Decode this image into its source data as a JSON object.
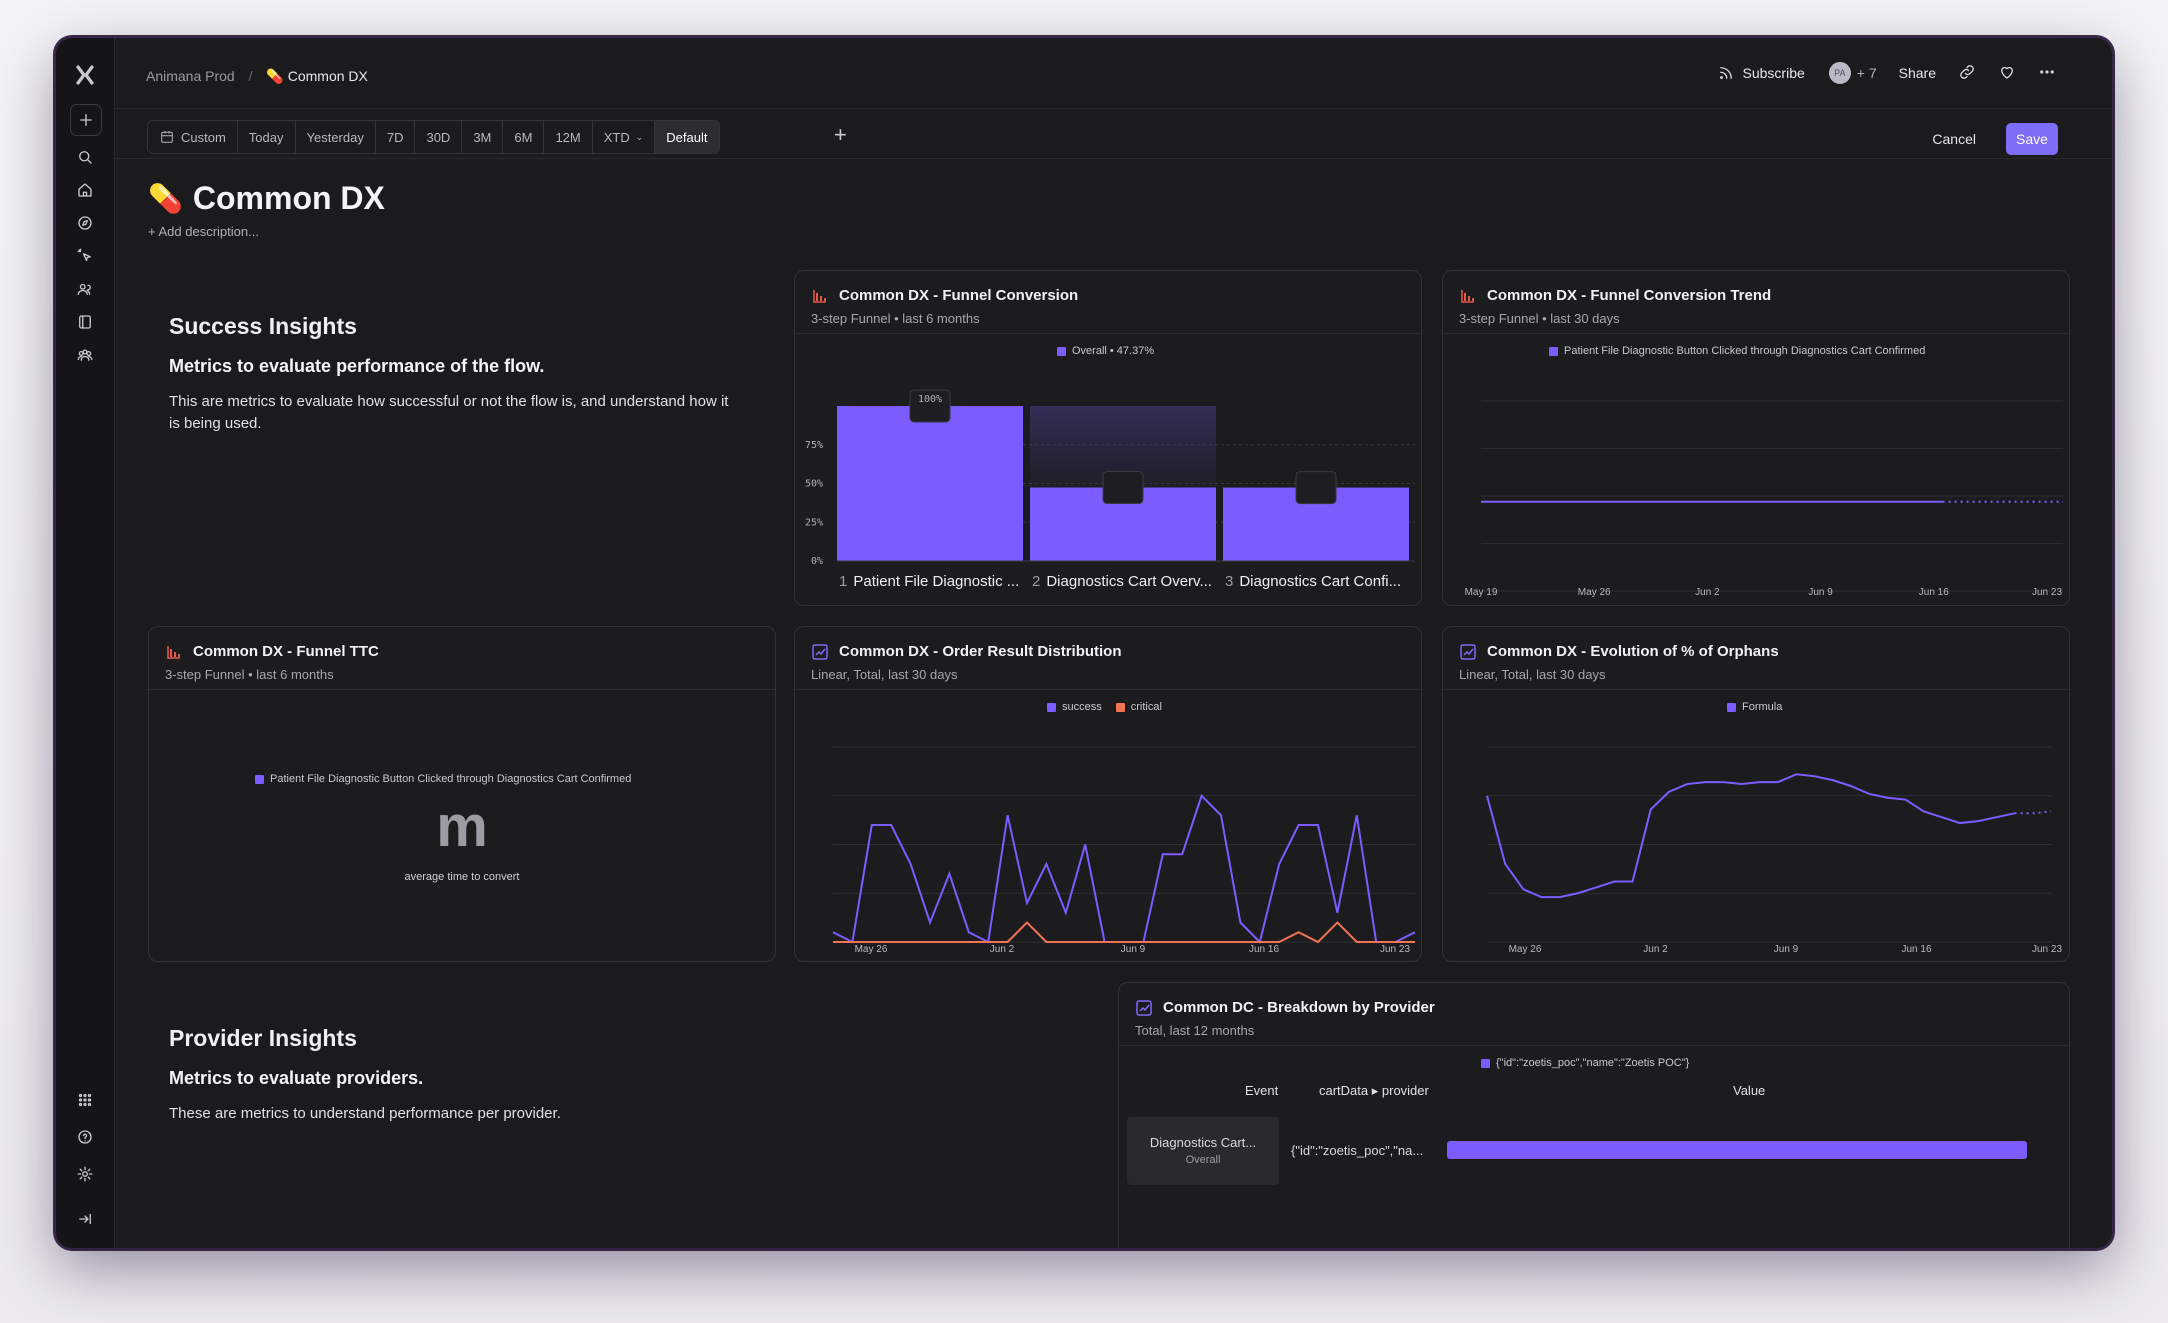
{
  "topbar": {
    "breadcrumb_parent": "Animana Prod",
    "breadcrumb_current": "Common DX",
    "subscribe_label": "Subscribe",
    "avatar_initials": "PA",
    "avatar_more": "+ 7",
    "share_label": "Share"
  },
  "filters": {
    "items": [
      "Custom",
      "Today",
      "Yesterday",
      "7D",
      "30D",
      "3M",
      "6M",
      "12M",
      "XTD",
      "Default"
    ],
    "active": "Default",
    "cancel_label": "Cancel",
    "save_label": "Save"
  },
  "page": {
    "title": "Common DX",
    "add_description": "+ Add description..."
  },
  "success_block": {
    "heading": "Success Insights",
    "subheading": "Metrics to evaluate performance of the flow.",
    "body": "This are metrics to evaluate how successful or not the flow is, and understand how it is being used."
  },
  "provider_block": {
    "heading": "Provider Insights",
    "subheading": "Metrics to evaluate providers.",
    "body": "These are metrics to understand performance per provider."
  },
  "colors": {
    "accent": "#7c5cff",
    "critical": "#f07454",
    "save_button": "#7c6cf6",
    "funnel_icon": "#e35a4a"
  },
  "cards": {
    "funnel_conversion": {
      "title": "Common DX - Funnel Conversion",
      "subtitle": "3-step Funnel • last 6 months",
      "legend": "Overall • 47.37%",
      "top_label": "100%",
      "steps": [
        {
          "num": "1",
          "label": "Patient File Diagnostic ..."
        },
        {
          "num": "2",
          "label": "Diagnostics Cart Overv..."
        },
        {
          "num": "3",
          "label": "Diagnostics Cart Confi..."
        }
      ]
    },
    "funnel_trend": {
      "title": "Common DX - Funnel Conversion Trend",
      "subtitle": "3-step Funnel • last 30 days",
      "legend": "Patient File Diagnostic Button Clicked through Diagnostics Cart Confirmed"
    },
    "funnel_ttc": {
      "title": "Common DX - Funnel TTC",
      "subtitle": "3-step Funnel • last 6 months",
      "legend": "Patient File Diagnostic Button Clicked through Diagnostics Cart Confirmed",
      "value": "m",
      "caption": "average time to convert"
    },
    "order_result": {
      "title": "Common DX - Order Result Distribution",
      "subtitle": "Linear, Total, last 30 days",
      "legend_a": "success",
      "legend_b": "critical"
    },
    "orphans": {
      "title": "Common DX - Evolution of % of Orphans",
      "subtitle": "Linear, Total, last 30 days",
      "legend": "Formula"
    },
    "breakdown": {
      "title": "Common DC - Breakdown by Provider",
      "subtitle": "Total, last 12 months",
      "legend": "{\"id\":\"zoetis_poc\",\"name\":\"Zoetis POC\"}",
      "col_event": "Event",
      "col_property": "cartData ▸ provider",
      "col_value": "Value",
      "row_event": "Diagnostics Cart...",
      "row_event_sub": "Overall",
      "row_provider": "{\"id\":\"zoetis_poc\",\"na...",
      "row_value": 1.0
    }
  },
  "chart_data": [
    {
      "id": "funnel_conversion",
      "type": "bar",
      "categories": [
        "Patient File Diagnostic ...",
        "Diagnostics Cart Overv...",
        "Diagnostics Cart Confi..."
      ],
      "values": [
        100,
        47.4,
        47.37
      ],
      "yticks": [
        "0%",
        "25%",
        "50%",
        "75%"
      ],
      "ylim": [
        0,
        100
      ]
    },
    {
      "id": "funnel_trend",
      "type": "line",
      "x_ticks": [
        "May 19",
        "May 26",
        "Jun 2",
        "Jun 9",
        "Jun 16",
        "Jun 23"
      ],
      "series": [
        {
          "name": "Patient File Diagnostic Button Clicked through Diagnostics Cart Confirmed",
          "values": [
            47,
            47,
            47,
            47,
            47,
            47,
            47,
            47,
            47,
            47,
            47,
            47,
            47,
            47,
            47,
            47,
            47,
            47,
            47,
            47,
            47,
            47,
            47,
            47,
            47,
            47,
            47,
            47,
            47,
            47
          ]
        }
      ],
      "ylim": [
        0,
        100
      ]
    },
    {
      "id": "order_result",
      "type": "line",
      "x_ticks": [
        "May 26",
        "Jun 2",
        "Jun 9",
        "Jun 16",
        "Jun 23"
      ],
      "series": [
        {
          "name": "success",
          "values": [
            1,
            0,
            12,
            12,
            8,
            2,
            7,
            1,
            0,
            13,
            4,
            8,
            3,
            10,
            0,
            0,
            0,
            9,
            9,
            15,
            13,
            2,
            0,
            8,
            12,
            12,
            3,
            13,
            0,
            0,
            1
          ]
        },
        {
          "name": "critical",
          "values": [
            0,
            0,
            0,
            0,
            0,
            0,
            0,
            0,
            0,
            0,
            2,
            0,
            0,
            0,
            0,
            0,
            0,
            0,
            0,
            0,
            0,
            0,
            0,
            0,
            1,
            0,
            2,
            0,
            0,
            0,
            0
          ]
        }
      ],
      "ylim": [
        0,
        20
      ]
    },
    {
      "id": "orphans",
      "type": "line",
      "x_ticks": [
        "May 26",
        "Jun 2",
        "Jun 9",
        "Jun 16",
        "Jun 23"
      ],
      "series": [
        {
          "name": "Formula",
          "values": [
            75,
            40,
            27,
            23,
            23,
            25,
            28,
            31,
            31,
            68,
            77,
            81,
            82,
            82,
            81,
            82,
            82,
            86,
            85,
            83,
            80,
            76,
            74,
            73,
            67,
            64,
            61,
            62,
            64,
            66,
            66,
            67
          ]
        }
      ],
      "ylim": [
        0,
        100
      ]
    },
    {
      "id": "breakdown",
      "type": "bar",
      "categories": [
        "{\"id\":\"zoetis_poc\",\"name\":\"Zoetis POC\"}"
      ],
      "values": [
        1.0
      ]
    }
  ]
}
